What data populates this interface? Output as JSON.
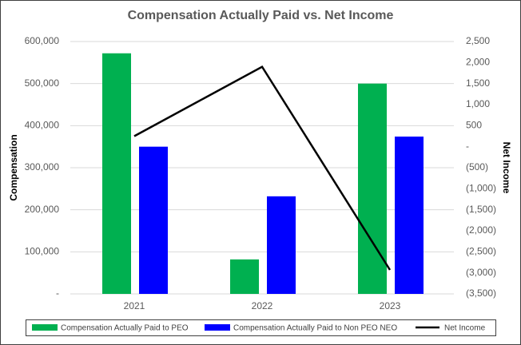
{
  "chart_data": {
    "type": "bar-line",
    "title": "Compensation Actually Paid vs. Net Income",
    "y_label": "Compensation",
    "y2_label": "Net Income",
    "categories": [
      "2021",
      "2022",
      "2023"
    ],
    "series": [
      {
        "name": "Compensation Actually Paid to PEO",
        "type": "bar",
        "color": "#00b050",
        "values": [
          572000,
          82000,
          500000
        ]
      },
      {
        "name": "Compensation Actually Paid to Non PEO  NEO",
        "type": "bar",
        "color": "#0000ff",
        "values": [
          350000,
          232000,
          374000
        ]
      },
      {
        "name": "Net Income",
        "type": "line",
        "color": "#000000",
        "axis": "y2",
        "values": [
          250,
          1900,
          -2930
        ]
      }
    ],
    "ylim": [
      0,
      600000
    ],
    "yticks": [
      {
        "value": 0,
        "label": "-"
      },
      {
        "value": 100000,
        "label": "100,000"
      },
      {
        "value": 200000,
        "label": "200,000"
      },
      {
        "value": 300000,
        "label": "300,000"
      },
      {
        "value": 400000,
        "label": "400,000"
      },
      {
        "value": 500000,
        "label": "500,000"
      },
      {
        "value": 600000,
        "label": "600,000"
      }
    ],
    "y2lim": [
      -3500,
      2500
    ],
    "y2ticks": [
      {
        "value": -3500,
        "label": "(3,500)"
      },
      {
        "value": -3000,
        "label": "(3,000)"
      },
      {
        "value": -2500,
        "label": "(2,500)"
      },
      {
        "value": -2000,
        "label": "(2,000)"
      },
      {
        "value": -1500,
        "label": "(1,500)"
      },
      {
        "value": -1000,
        "label": "(1,000)"
      },
      {
        "value": -500,
        "label": "(500)"
      },
      {
        "value": 0,
        "label": "-"
      },
      {
        "value": 500,
        "label": "500"
      },
      {
        "value": 1000,
        "label": "1,000"
      },
      {
        "value": 1500,
        "label": "1,500"
      },
      {
        "value": 2000,
        "label": "2,000"
      },
      {
        "value": 2500,
        "label": "2,500"
      }
    ],
    "grid": true,
    "legend": "bottom"
  }
}
